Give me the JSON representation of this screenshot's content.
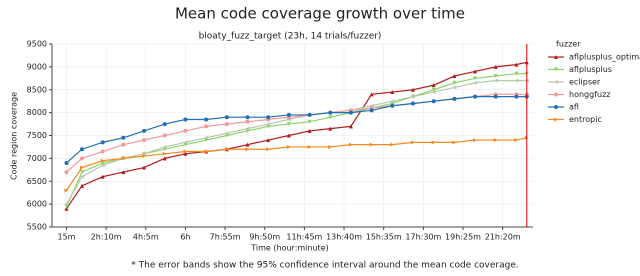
{
  "chart_data": {
    "type": "line",
    "title": "Mean code coverage growth over time",
    "subtitle": "bloaty_fuzz_target (23h, 14 trials/fuzzer)",
    "x_label": "Time (hour:minute)",
    "y_label": "Code region coverage",
    "footnote": "* The error bands show the 95% confidence interval around the mean code coverage.",
    "legend_title": "fuzzer",
    "legend": "outside right",
    "grid": true,
    "end_line": 22.5,
    "xlim": [
      -0.45,
      22.8
    ],
    "ylim": [
      5500,
      9500
    ],
    "xticks": [
      {
        "value": 0.25,
        "label": "15m"
      },
      {
        "value": 2.1667,
        "label": "2h:10m"
      },
      {
        "value": 4.0833,
        "label": "4h:5m"
      },
      {
        "value": 6,
        "label": "6h"
      },
      {
        "value": 7.9167,
        "label": "7h:55m"
      },
      {
        "value": 9.8333,
        "label": "9h:50m"
      },
      {
        "value": 11.75,
        "label": "11h:45m"
      },
      {
        "value": 13.6667,
        "label": "13h:40m"
      },
      {
        "value": 15.5833,
        "label": "15h:35m"
      },
      {
        "value": 17.5,
        "label": "17h:30m"
      },
      {
        "value": 19.4167,
        "label": "19h:25m"
      },
      {
        "value": 21.3333,
        "label": "21h:20m"
      }
    ],
    "yticks": [
      5500,
      6000,
      6500,
      7000,
      7500,
      8000,
      8500,
      9000,
      9500
    ],
    "x": [
      0.25,
      1,
      2,
      3,
      4,
      5,
      6,
      7,
      8,
      9,
      10,
      11,
      12,
      13,
      14,
      15,
      16,
      17,
      18,
      19,
      20,
      21,
      22,
      22.5
    ],
    "series": [
      {
        "name": "aflplusplus_optimal",
        "color": "#b01c1c",
        "marker": "triangle-up",
        "values": [
          5900,
          6400,
          6600,
          6700,
          6800,
          7000,
          7100,
          7150,
          7200,
          7300,
          7400,
          7500,
          7600,
          7650,
          7700,
          8400,
          8450,
          8500,
          8600,
          8800,
          8900,
          9000,
          9050,
          9100
        ]
      },
      {
        "name": "aflplusplus",
        "color": "#8fd46a",
        "marker": "triangle-down",
        "values": [
          5950,
          6700,
          6900,
          7000,
          7100,
          7200,
          7300,
          7400,
          7500,
          7600,
          7700,
          7750,
          7800,
          7900,
          8000,
          8100,
          8200,
          8350,
          8500,
          8650,
          8750,
          8800,
          8850,
          8850
        ]
      },
      {
        "name": "eclipser",
        "color": "#b5c9ad",
        "marker": "triangle-left",
        "values": [
          6000,
          6600,
          6850,
          7000,
          7100,
          7250,
          7350,
          7450,
          7550,
          7650,
          7750,
          7850,
          7950,
          8000,
          8050,
          8150,
          8250,
          8350,
          8450,
          8550,
          8650,
          8700,
          8700,
          8700
        ]
      },
      {
        "name": "honggfuzz",
        "color": "#f29a9a",
        "marker": "circle",
        "values": [
          6700,
          7000,
          7150,
          7300,
          7400,
          7500,
          7600,
          7700,
          7750,
          7800,
          7850,
          7900,
          7950,
          8000,
          8050,
          8100,
          8150,
          8200,
          8250,
          8300,
          8350,
          8400,
          8400,
          8400
        ]
      },
      {
        "name": "afl",
        "color": "#1f6fb4",
        "marker": "circle",
        "values": [
          6900,
          7200,
          7350,
          7450,
          7600,
          7750,
          7850,
          7850,
          7900,
          7900,
          7900,
          7950,
          7950,
          8000,
          8000,
          8050,
          8150,
          8200,
          8250,
          8300,
          8350,
          8350,
          8350,
          8350
        ]
      },
      {
        "name": "entropic",
        "color": "#f5891f",
        "marker": "triangle-right",
        "values": [
          6300,
          6800,
          6950,
          7000,
          7050,
          7100,
          7150,
          7150,
          7200,
          7200,
          7200,
          7250,
          7250,
          7250,
          7300,
          7300,
          7300,
          7350,
          7350,
          7350,
          7400,
          7400,
          7400,
          7450
        ]
      }
    ]
  }
}
